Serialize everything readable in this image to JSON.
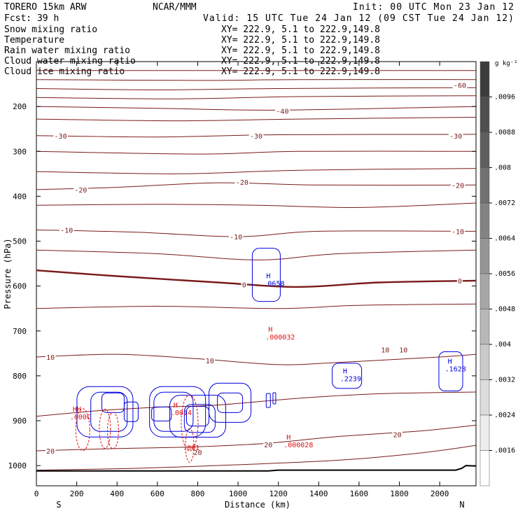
{
  "header": {
    "model": "TORERO  15km ARW",
    "org": "NCAR/MMM",
    "init": "Init: 00 UTC Mon 23 Jan 12",
    "fcst": "Fcst:   39 h",
    "valid": "Valid: 15 UTC Tue 24 Jan 12 (09 CST Tue 24 Jan 12)"
  },
  "fields": [
    {
      "name": "Snow mixing ratio",
      "xy": "XY= 222.9,  5.1 to 222.9,149.8",
      "color": "#000000"
    },
    {
      "name": "Temperature",
      "xy": "XY= 222.9,  5.1 to 222.9,149.8",
      "color": "#cc0000"
    },
    {
      "name": "Rain water mixing ratio",
      "xy": "XY= 222.9,  5.1 to 222.9,149.8",
      "color": "#cc0000"
    },
    {
      "name": "Cloud water mixing ratio",
      "xy": "XY= 222.9,  5.1 to 222.9,149.8",
      "color": "#0000cc"
    },
    {
      "name": "Cloud ice mixing ratio",
      "xy": "XY= 222.9,  5.1 to 222.9,149.8",
      "color": "#000000"
    }
  ],
  "colorbar": {
    "units": "g kg⁻¹",
    "labels": [
      ".0096",
      ".0088",
      ".008",
      ".0072",
      ".0064",
      ".0056",
      ".0048",
      ".004",
      ".0032",
      ".0024",
      ".0016"
    ]
  },
  "colors": {
    "temperature": "#7a1a1a",
    "rain": "#dd1111",
    "cloud_water": "#0000dd",
    "ground": "#000000"
  },
  "chart_data": {
    "type": "contour",
    "xlabel": "Distance (km)",
    "ylabel": "Pressure (hPa)",
    "x_ticks": [
      0,
      200,
      400,
      600,
      800,
      1000,
      1200,
      1400,
      1600,
      1800,
      2000
    ],
    "y_ticks": [
      200,
      300,
      400,
      500,
      600,
      700,
      800,
      900,
      1000
    ],
    "xlim": [
      0,
      2180
    ],
    "ylim": [
      1045,
      100
    ],
    "left_end": "S",
    "right_end": "N",
    "temperature_labels": [
      {
        "text": "-60",
        "x": 2100,
        "p": 152
      },
      {
        "text": "-40",
        "x": 1220,
        "p": 210
      },
      {
        "text": "-30",
        "x": 120,
        "p": 265
      },
      {
        "text": "-30",
        "x": 1090,
        "p": 265
      },
      {
        "text": "-30",
        "x": 2080,
        "p": 265
      },
      {
        "text": "-20",
        "x": 220,
        "p": 385
      },
      {
        "text": "-20",
        "x": 1020,
        "p": 368
      },
      {
        "text": "-20",
        "x": 2090,
        "p": 375
      },
      {
        "text": "-10",
        "x": 150,
        "p": 475
      },
      {
        "text": "-10",
        "x": 990,
        "p": 490
      },
      {
        "text": "-10",
        "x": 2090,
        "p": 478
      },
      {
        "text": "0",
        "x": 1030,
        "p": 597
      },
      {
        "text": "0",
        "x": 2100,
        "p": 588
      },
      {
        "text": "10",
        "x": 70,
        "p": 758
      },
      {
        "text": "10",
        "x": 860,
        "p": 766
      },
      {
        "text": "10",
        "x": 1730,
        "p": 742
      },
      {
        "text": "10",
        "x": 1820,
        "p": 742
      },
      {
        "text": "20",
        "x": 70,
        "p": 967
      },
      {
        "text": "20",
        "x": 800,
        "p": 970
      },
      {
        "text": "20",
        "x": 1150,
        "p": 953
      },
      {
        "text": "20",
        "x": 1790,
        "p": 930
      }
    ],
    "temperature_series": [
      {
        "name": "",
        "points": [
          [
            0,
            120
          ],
          [
            2180,
            120
          ]
        ]
      },
      {
        "name": "",
        "points": [
          [
            0,
            140
          ],
          [
            800,
            142
          ],
          [
            1300,
            140
          ],
          [
            2180,
            140
          ]
        ]
      },
      {
        "name": "-60",
        "points": [
          [
            0,
            160
          ],
          [
            600,
            163
          ],
          [
            1200,
            160
          ],
          [
            2180,
            158
          ]
        ]
      },
      {
        "name": "",
        "points": [
          [
            0,
            180
          ],
          [
            700,
            183
          ],
          [
            1300,
            178
          ],
          [
            2180,
            176
          ]
        ]
      },
      {
        "name": "-40",
        "points": [
          [
            0,
            200
          ],
          [
            600,
            204
          ],
          [
            1200,
            208
          ],
          [
            2180,
            200
          ]
        ]
      },
      {
        "name": "",
        "points": [
          [
            0,
            228
          ],
          [
            700,
            232
          ],
          [
            1300,
            228
          ],
          [
            2180,
            224
          ]
        ]
      },
      {
        "name": "-30",
        "points": [
          [
            0,
            265
          ],
          [
            600,
            268
          ],
          [
            1200,
            263
          ],
          [
            2180,
            262
          ]
        ]
      },
      {
        "name": "",
        "points": [
          [
            0,
            300
          ],
          [
            800,
            306
          ],
          [
            1300,
            300
          ],
          [
            2180,
            300
          ]
        ]
      },
      {
        "name": "",
        "points": [
          [
            0,
            345
          ],
          [
            700,
            350
          ],
          [
            1300,
            342
          ],
          [
            2180,
            338
          ]
        ]
      },
      {
        "name": "-20",
        "points": [
          [
            0,
            385
          ],
          [
            400,
            380
          ],
          [
            900,
            370
          ],
          [
            1400,
            375
          ],
          [
            2180,
            375
          ]
        ]
      },
      {
        "name": "",
        "points": [
          [
            0,
            420
          ],
          [
            600,
            418
          ],
          [
            1100,
            420
          ],
          [
            1600,
            425
          ],
          [
            2180,
            415
          ]
        ]
      },
      {
        "name": "-10",
        "points": [
          [
            0,
            475
          ],
          [
            500,
            480
          ],
          [
            1000,
            490
          ],
          [
            1400,
            478
          ],
          [
            2180,
            478
          ]
        ]
      },
      {
        "name": "",
        "points": [
          [
            0,
            520
          ],
          [
            600,
            528
          ],
          [
            1100,
            542
          ],
          [
            1500,
            528
          ],
          [
            2180,
            520
          ]
        ]
      },
      {
        "name": "0",
        "points": [
          [
            0,
            565
          ],
          [
            400,
            578
          ],
          [
            900,
            592
          ],
          [
            1300,
            602
          ],
          [
            1700,
            592
          ],
          [
            2180,
            588
          ]
        ]
      },
      {
        "name": "",
        "points": [
          [
            0,
            650
          ],
          [
            600,
            645
          ],
          [
            1200,
            650
          ],
          [
            1600,
            643
          ],
          [
            2180,
            640
          ]
        ]
      },
      {
        "name": "10",
        "points": [
          [
            0,
            758
          ],
          [
            400,
            752
          ],
          [
            800,
            762
          ],
          [
            1200,
            775
          ],
          [
            1500,
            770
          ],
          [
            2000,
            758
          ],
          [
            2180,
            752
          ]
        ]
      },
      {
        "name": "",
        "points": [
          [
            0,
            890
          ],
          [
            300,
            878
          ],
          [
            600,
            870
          ],
          [
            900,
            865
          ],
          [
            1300,
            850
          ],
          [
            1700,
            840
          ],
          [
            2180,
            836
          ]
        ]
      },
      {
        "name": "20",
        "points": [
          [
            0,
            967
          ],
          [
            400,
            962
          ],
          [
            800,
            958
          ],
          [
            1150,
            950
          ],
          [
            1500,
            935
          ],
          [
            1900,
            923
          ],
          [
            2180,
            910
          ]
        ]
      },
      {
        "name": "",
        "points": [
          [
            0,
            1010
          ],
          [
            500,
            1006
          ],
          [
            1000,
            998
          ],
          [
            1500,
            988
          ],
          [
            1900,
            972
          ],
          [
            2180,
            955
          ]
        ]
      }
    ],
    "ground": [
      [
        0,
        1012
      ],
      [
        1150,
        1012
      ],
      [
        1200,
        1010
      ],
      [
        2080,
        1010
      ],
      [
        2110,
        1006
      ],
      [
        2130,
        1000
      ],
      [
        2180,
        1001
      ]
    ],
    "maxima": [
      {
        "field": "cloud_water",
        "label": "H",
        "value": ".0658",
        "x": 1140,
        "p": 583
      },
      {
        "field": "cloud_water",
        "label": "H",
        "value": ".2239",
        "x": 1520,
        "p": 795
      },
      {
        "field": "cloud_water",
        "label": "H",
        "value": ".1628",
        "x": 2040,
        "p": 773
      },
      {
        "field": "rain",
        "label": "H",
        "value": ".000032",
        "x": 1150,
        "p": 702
      },
      {
        "field": "rain",
        "label": "H",
        "value": ".000028",
        "x": 1240,
        "p": 942
      },
      {
        "field": "rain",
        "label": "HH",
        "value": ".000C",
        "x": 180,
        "p": 880
      },
      {
        "field": "rain",
        "label": "H",
        "value": ".0014",
        "x": 680,
        "p": 870
      },
      {
        "field": "rain",
        "label": "",
        "value": ".001",
        "x": 740,
        "p": 948
      }
    ]
  }
}
